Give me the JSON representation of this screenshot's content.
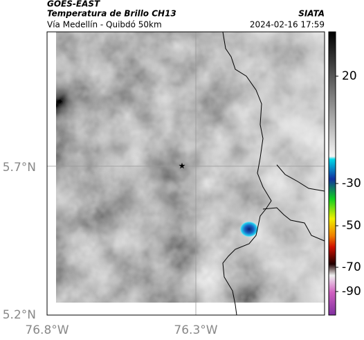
{
  "header": {
    "agency": "GOES-EAST",
    "title": "Temperatura de Brillo CH13",
    "subtitle": "Vía Medellín - Quibdó 50km",
    "org": "SIATA",
    "datetime": "2024-02-16 17:59"
  },
  "map": {
    "lat_labels": [
      "5.7°N",
      "5.2°N"
    ],
    "lon_labels": [
      "76.8°W",
      "76.3°W"
    ]
  },
  "colorbar": {
    "tick_labels": [
      "20",
      "-30",
      "-50",
      "-70",
      "-90"
    ]
  }
}
